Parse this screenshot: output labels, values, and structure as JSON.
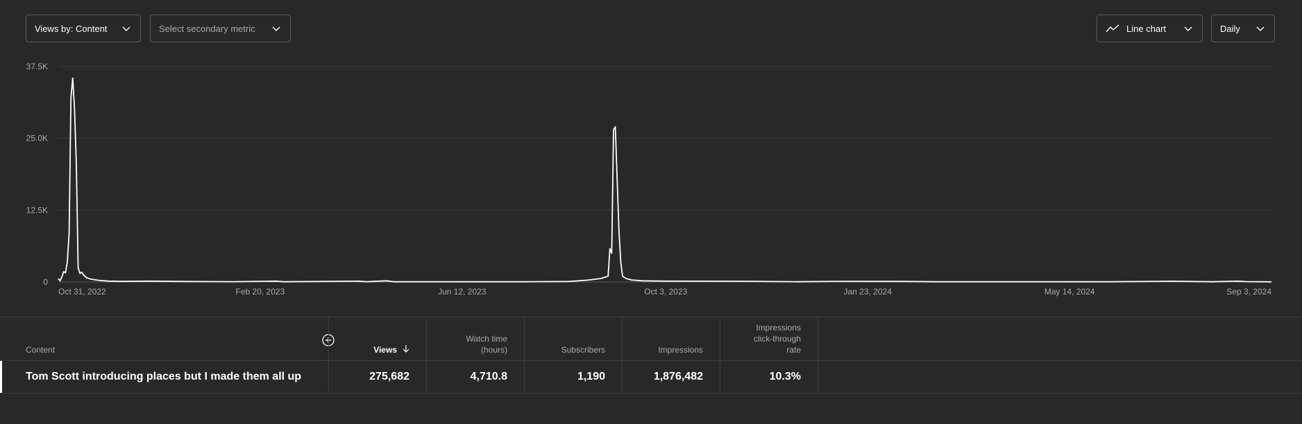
{
  "toolbar": {
    "views_by": "Views by: Content",
    "secondary_metric_placeholder": "Select secondary metric",
    "chart_type": "Line chart",
    "interval": "Daily"
  },
  "chart_data": {
    "type": "line",
    "title": "",
    "xlabel": "",
    "ylabel": "",
    "y_ticks": [
      "37.5K",
      "25.0K",
      "12.5K",
      "0"
    ],
    "y_tick_values": [
      37500,
      25000,
      12500,
      0
    ],
    "ylim": [
      0,
      37500
    ],
    "x_tick_labels": [
      "Oct 31, 2022",
      "Feb 20, 2023",
      "Jun 12, 2023",
      "Oct 3, 2023",
      "Jan 23, 2024",
      "May 14, 2024",
      "Sep 3, 2024"
    ],
    "x_range": [
      "Oct 31, 2022",
      "Sep 3, 2024"
    ],
    "grid": true,
    "line_color": "#ffffff",
    "series": [
      {
        "values_by_date": [
          [
            "Oct 31, 2022",
            600
          ],
          [
            "Nov 1, 2022",
            200
          ],
          [
            "Nov 2, 2022",
            900
          ],
          [
            "Nov 3, 2022",
            1800
          ],
          [
            "Nov 4, 2022",
            1600
          ],
          [
            "Nov 5, 2022",
            3500
          ],
          [
            "Nov 6, 2022",
            8500
          ],
          [
            "Nov 7, 2022",
            32000
          ],
          [
            "Nov 8, 2022",
            35500
          ],
          [
            "Nov 9, 2022",
            30000
          ],
          [
            "Nov 10, 2022",
            20500
          ],
          [
            "Nov 11, 2022",
            2500
          ],
          [
            "Nov 12, 2022",
            1500
          ],
          [
            "Nov 13, 2022",
            1700
          ],
          [
            "Nov 14, 2022",
            1200
          ],
          [
            "Nov 16, 2022",
            700
          ],
          [
            "Nov 18, 2022",
            500
          ],
          [
            "Nov 22, 2022",
            300
          ],
          [
            "Nov 28, 2022",
            150
          ],
          [
            "Dec 5, 2022",
            100
          ],
          [
            "Dec 20, 2022",
            150
          ],
          [
            "Jan 10, 2023",
            80
          ],
          [
            "Feb 5, 2023",
            50
          ],
          [
            "Mar 1, 2023",
            150
          ],
          [
            "Mar 5, 2023",
            40
          ],
          [
            "Apr 15, 2023",
            140
          ],
          [
            "Apr 20, 2023",
            40
          ],
          [
            "May 1, 2023",
            200
          ],
          [
            "May 5, 2023",
            40
          ],
          [
            "Jul 15, 2023",
            40
          ],
          [
            "Aug 10, 2023",
            80
          ],
          [
            "Aug 20, 2023",
            300
          ],
          [
            "Aug 28, 2023",
            600
          ],
          [
            "Sep 1, 2023",
            1000
          ],
          [
            "Sep 2, 2023",
            5800
          ],
          [
            "Sep 3, 2023",
            5000
          ],
          [
            "Sep 4, 2023",
            26500
          ],
          [
            "Sep 5, 2023",
            27000
          ],
          [
            "Sep 6, 2023",
            18000
          ],
          [
            "Sep 7, 2023",
            9000
          ],
          [
            "Sep 8, 2023",
            3500
          ],
          [
            "Sep 9, 2023",
            1000
          ],
          [
            "Sep 11, 2023",
            600
          ],
          [
            "Sep 14, 2023",
            350
          ],
          [
            "Sep 20, 2023",
            200
          ],
          [
            "Oct 3, 2023",
            150
          ],
          [
            "Nov 15, 2023",
            120
          ],
          [
            "Dec 15, 2023",
            40
          ],
          [
            "Jan 5, 2024",
            110
          ],
          [
            "Feb 10, 2024",
            100
          ],
          [
            "Mar 1, 2024",
            40
          ],
          [
            "Apr 15, 2024",
            40
          ],
          [
            "Jun 5, 2024",
            40
          ],
          [
            "Jul 10, 2024",
            130
          ],
          [
            "Aug 1, 2024",
            40
          ],
          [
            "Aug 15, 2024",
            150
          ],
          [
            "Aug 20, 2024",
            60
          ],
          [
            "Sep 3, 2024",
            30
          ]
        ]
      }
    ]
  },
  "table": {
    "headers": {
      "content": "Content",
      "views": "Views",
      "watch_time": [
        "Watch time",
        "(hours)"
      ],
      "subscribers": "Subscribers",
      "impressions": "Impressions",
      "ctr": [
        "Impressions",
        "click-through",
        "rate"
      ]
    },
    "rows": [
      {
        "title": "Tom Scott introducing places but I made them all up",
        "views": "275,682",
        "watch_time": "4,710.8",
        "subscribers": "1,190",
        "impressions": "1,876,482",
        "ctr": "10.3%"
      }
    ]
  }
}
